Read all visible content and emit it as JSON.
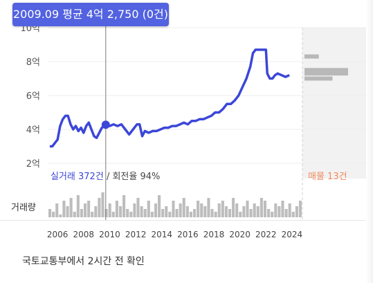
{
  "tooltip": {
    "text": "2009.09 평균 4억 2,750 (0건)"
  },
  "trades_count_label": "실거래 372건",
  "turnover_label": "/ 회전율 94%",
  "listings_label": "매물 13건",
  "volume_label": "거래량",
  "source_text": "국토교통부에서 2시간 전 확인",
  "colors": {
    "line": "#3b46d8",
    "tooltip": "#5262e0",
    "bars": "#bdbdbd",
    "listing_text": "#f08a5d",
    "listing_bg": "#f2f2f2"
  },
  "chart_data": {
    "type": "line",
    "ylabel": "",
    "xlabel": "",
    "y_unit": "억",
    "yticks": [
      2,
      4,
      6,
      8,
      10
    ],
    "ytick_labels": [
      "2억",
      "4억",
      "6억",
      "8억",
      "10억"
    ],
    "ylim": [
      2,
      10
    ],
    "xticks": [
      2006,
      2008,
      2010,
      2012,
      2014,
      2016,
      2018,
      2020,
      2022,
      2024
    ],
    "xlim": [
      2005.3,
      2024.8
    ],
    "highlight": {
      "x": 2009.7,
      "y": 4.275
    },
    "series": [
      {
        "points": [
          [
            2005.4,
            3.0
          ],
          [
            2005.6,
            3.0
          ],
          [
            2005.8,
            3.2
          ],
          [
            2006.0,
            3.4
          ],
          [
            2006.2,
            4.2
          ],
          [
            2006.4,
            4.6
          ],
          [
            2006.6,
            4.8
          ],
          [
            2006.8,
            4.8
          ],
          [
            2007.0,
            4.3
          ],
          [
            2007.2,
            4.0
          ],
          [
            2007.4,
            4.2
          ],
          [
            2007.6,
            3.9
          ],
          [
            2007.8,
            4.1
          ],
          [
            2008.0,
            3.8
          ],
          [
            2008.2,
            4.2
          ],
          [
            2008.4,
            4.4
          ],
          [
            2008.6,
            4.0
          ],
          [
            2008.8,
            3.6
          ],
          [
            2009.0,
            3.5
          ],
          [
            2009.2,
            3.8
          ],
          [
            2009.4,
            4.1
          ],
          [
            2009.7,
            4.275
          ],
          [
            2010.0,
            4.2
          ],
          [
            2010.3,
            4.3
          ],
          [
            2010.6,
            4.2
          ],
          [
            2010.9,
            4.3
          ],
          [
            2011.2,
            4.0
          ],
          [
            2011.5,
            3.7
          ],
          [
            2011.8,
            4.0
          ],
          [
            2012.1,
            4.3
          ],
          [
            2012.3,
            4.3
          ],
          [
            2012.5,
            3.6
          ],
          [
            2012.7,
            3.9
          ],
          [
            2013.0,
            3.8
          ],
          [
            2013.3,
            3.9
          ],
          [
            2013.6,
            3.9
          ],
          [
            2013.9,
            4.0
          ],
          [
            2014.2,
            4.1
          ],
          [
            2014.5,
            4.1
          ],
          [
            2014.8,
            4.2
          ],
          [
            2015.1,
            4.2
          ],
          [
            2015.4,
            4.3
          ],
          [
            2015.7,
            4.4
          ],
          [
            2016.0,
            4.3
          ],
          [
            2016.3,
            4.5
          ],
          [
            2016.6,
            4.5
          ],
          [
            2016.9,
            4.6
          ],
          [
            2017.2,
            4.6
          ],
          [
            2017.5,
            4.7
          ],
          [
            2017.8,
            4.8
          ],
          [
            2018.1,
            5.0
          ],
          [
            2018.4,
            5.0
          ],
          [
            2018.7,
            5.2
          ],
          [
            2019.0,
            5.5
          ],
          [
            2019.3,
            5.5
          ],
          [
            2019.6,
            5.7
          ],
          [
            2019.9,
            6.0
          ],
          [
            2020.2,
            6.5
          ],
          [
            2020.5,
            7.0
          ],
          [
            2020.8,
            7.7
          ],
          [
            2021.0,
            8.5
          ],
          [
            2021.2,
            8.7
          ],
          [
            2021.5,
            8.7
          ],
          [
            2021.8,
            8.7
          ],
          [
            2022.0,
            8.7
          ],
          [
            2022.1,
            7.3
          ],
          [
            2022.3,
            7.0
          ],
          [
            2022.5,
            7.0
          ],
          [
            2022.7,
            7.2
          ],
          [
            2022.9,
            7.3
          ],
          [
            2023.2,
            7.2
          ],
          [
            2023.5,
            7.1
          ],
          [
            2023.8,
            7.2
          ]
        ]
      }
    ],
    "listing_bars": [
      [
        8.3,
        2.3
      ],
      [
        7.5,
        7.0
      ],
      [
        7.3,
        7.0
      ],
      [
        7.0,
        4.5
      ]
    ],
    "volume": [
      3,
      2,
      5,
      1,
      6,
      4,
      7,
      2,
      8,
      3,
      5,
      6,
      2,
      4,
      7,
      9,
      3,
      5,
      2,
      6,
      4,
      8,
      3,
      2,
      5,
      7,
      4,
      3,
      6,
      2,
      5,
      8,
      3,
      4,
      2,
      6,
      3,
      5,
      7,
      4,
      2,
      3,
      6,
      5,
      4,
      7,
      3,
      2,
      5,
      6,
      4,
      3,
      7,
      5,
      2,
      4,
      6,
      3,
      5,
      4,
      7,
      6,
      3,
      2,
      5,
      4,
      6,
      3,
      5,
      2,
      4,
      6
    ]
  }
}
